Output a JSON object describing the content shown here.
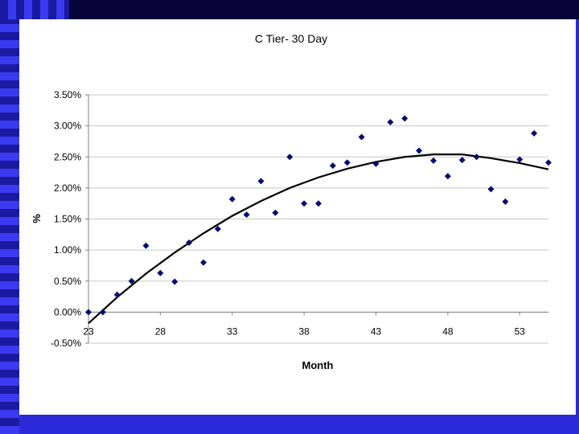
{
  "colors": {
    "background": "#2a2ad8",
    "top_bar": "#05053a",
    "marker": "#0a0a6e",
    "trend": "#000000"
  },
  "chart_data": {
    "type": "scatter",
    "title": "C Tier- 30 Day",
    "xlabel": "Month",
    "ylabel": "%",
    "xlim": [
      23,
      55
    ],
    "ylim": [
      -0.5,
      3.5
    ],
    "x_ticks": [
      "23",
      "28",
      "33",
      "38",
      "43",
      "48",
      "53"
    ],
    "y_ticks": [
      "3.50%",
      "3.00%",
      "2.50%",
      "2.00%",
      "1.50%",
      "1.00%",
      "0.50%",
      "0.00%",
      "-0.50%"
    ],
    "grid": "horizontal",
    "legend": "none",
    "series": [
      {
        "marker": "diamond",
        "points": [
          [
            23,
            0.0
          ],
          [
            24,
            0.0
          ],
          [
            25,
            0.28
          ],
          [
            26,
            0.5
          ],
          [
            27,
            1.07
          ],
          [
            28,
            0.63
          ],
          [
            29,
            0.49
          ],
          [
            30,
            1.12
          ],
          [
            31,
            0.8
          ],
          [
            32,
            1.34
          ],
          [
            33,
            1.82
          ],
          [
            34,
            1.57
          ],
          [
            35,
            2.11
          ],
          [
            36,
            1.6
          ],
          [
            37,
            2.5
          ],
          [
            38,
            1.75
          ],
          [
            39,
            1.75
          ],
          [
            40,
            2.36
          ],
          [
            41,
            2.41
          ],
          [
            42,
            2.82
          ],
          [
            43,
            2.39
          ],
          [
            44,
            3.06
          ],
          [
            45,
            3.12
          ],
          [
            46,
            2.6
          ],
          [
            47,
            2.44
          ],
          [
            48,
            2.19
          ],
          [
            49,
            2.45
          ],
          [
            50,
            2.5
          ],
          [
            51,
            1.98
          ],
          [
            52,
            1.78
          ],
          [
            53,
            2.46
          ],
          [
            54,
            2.88
          ],
          [
            55,
            2.41
          ]
        ]
      }
    ],
    "trendline": {
      "type": "polynomial",
      "points": [
        [
          23,
          -0.18
        ],
        [
          25,
          0.24
        ],
        [
          27,
          0.62
        ],
        [
          29,
          0.96
        ],
        [
          31,
          1.27
        ],
        [
          33,
          1.55
        ],
        [
          35,
          1.79
        ],
        [
          37,
          2.0
        ],
        [
          39,
          2.17
        ],
        [
          41,
          2.31
        ],
        [
          43,
          2.42
        ],
        [
          45,
          2.5
        ],
        [
          47,
          2.54
        ],
        [
          49,
          2.54
        ],
        [
          51,
          2.48
        ],
        [
          53,
          2.4
        ],
        [
          55,
          2.3
        ]
      ]
    }
  }
}
